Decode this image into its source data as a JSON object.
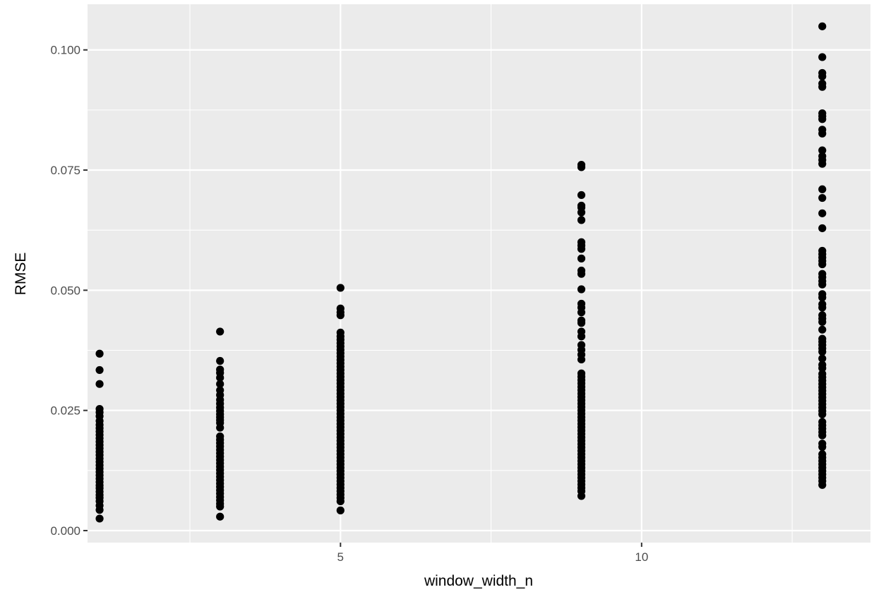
{
  "chart_data": {
    "type": "scatter",
    "title": "",
    "xlabel": "window_width_n",
    "ylabel": "RMSE",
    "xlim": [
      0.8,
      13.8
    ],
    "ylim": [
      -0.0025,
      0.1095
    ],
    "x_ticks": [
      5,
      10
    ],
    "x_tick_labels": [
      "5",
      "10"
    ],
    "x_minor_ticks": [
      2.5,
      7.5,
      12.5
    ],
    "y_ticks": [
      0,
      0.025,
      0.05,
      0.075,
      0.1
    ],
    "y_tick_labels": [
      "0.000",
      "0.025",
      "0.050",
      "0.075",
      "0.100"
    ],
    "y_minor_ticks": [
      0.0125,
      0.0375,
      0.0625,
      0.0875
    ],
    "grid": true,
    "colors": {
      "panel_background": "#ebebeb",
      "grid_line": "#ffffff",
      "point": "#000000",
      "tick_label": "#4d4d4d",
      "axis_title": "#000000"
    },
    "series": [
      {
        "x": 1,
        "values": [
          0.0025,
          0.0043,
          0.0052,
          0.0061,
          0.0068,
          0.0074,
          0.0081,
          0.0088,
          0.0094,
          0.0101,
          0.0108,
          0.0115,
          0.0122,
          0.0129,
          0.0136,
          0.0143,
          0.015,
          0.0157,
          0.0164,
          0.0171,
          0.0178,
          0.0185,
          0.0192,
          0.0199,
          0.0206,
          0.0213,
          0.022,
          0.0228,
          0.0238,
          0.0246,
          0.0253,
          0.0305,
          0.0334,
          0.0368
        ]
      },
      {
        "x": 3,
        "values": [
          0.0029,
          0.005,
          0.0056,
          0.0063,
          0.007,
          0.0077,
          0.0084,
          0.0091,
          0.0098,
          0.0105,
          0.0112,
          0.0119,
          0.0126,
          0.0133,
          0.014,
          0.0147,
          0.0154,
          0.0161,
          0.0168,
          0.0175,
          0.0182,
          0.0189,
          0.0196,
          0.0214,
          0.0224,
          0.023,
          0.0236,
          0.0242,
          0.0249,
          0.0256,
          0.0264,
          0.0272,
          0.0282,
          0.0292,
          0.0305,
          0.0318,
          0.0328,
          0.0335,
          0.0353,
          0.0414
        ]
      },
      {
        "x": 5,
        "values": [
          0.0042,
          0.0061,
          0.0068,
          0.0075,
          0.0082,
          0.0089,
          0.0096,
          0.0103,
          0.011,
          0.0117,
          0.0124,
          0.0131,
          0.0138,
          0.0145,
          0.0152,
          0.0159,
          0.0166,
          0.0173,
          0.018,
          0.0187,
          0.0194,
          0.0201,
          0.0208,
          0.0215,
          0.0222,
          0.0229,
          0.0236,
          0.0243,
          0.025,
          0.0257,
          0.0264,
          0.0271,
          0.0278,
          0.0285,
          0.0292,
          0.0299,
          0.0306,
          0.0313,
          0.032,
          0.0327,
          0.0334,
          0.0341,
          0.0348,
          0.0355,
          0.0362,
          0.0369,
          0.0376,
          0.0383,
          0.039,
          0.0397,
          0.0404,
          0.0412,
          0.0448,
          0.0454,
          0.0462,
          0.0505
        ]
      },
      {
        "x": 9,
        "values": [
          0.0072,
          0.0082,
          0.0089,
          0.0096,
          0.0103,
          0.011,
          0.0117,
          0.0124,
          0.0131,
          0.0138,
          0.0145,
          0.0152,
          0.0159,
          0.0166,
          0.0173,
          0.018,
          0.0187,
          0.0194,
          0.0201,
          0.0208,
          0.0215,
          0.0222,
          0.0229,
          0.0236,
          0.0243,
          0.025,
          0.0257,
          0.0264,
          0.0271,
          0.0278,
          0.0285,
          0.0292,
          0.0299,
          0.0306,
          0.0313,
          0.032,
          0.0327,
          0.0356,
          0.0366,
          0.0376,
          0.0386,
          0.0404,
          0.0414,
          0.0432,
          0.0437,
          0.0454,
          0.0464,
          0.0472,
          0.0502,
          0.0534,
          0.0541,
          0.0566,
          0.0586,
          0.0593,
          0.06,
          0.0646,
          0.0662,
          0.0672,
          0.0676,
          0.0698,
          0.0756,
          0.0761
        ]
      },
      {
        "x": 13,
        "values": [
          0.0095,
          0.0103,
          0.011,
          0.0117,
          0.0124,
          0.0131,
          0.0138,
          0.0145,
          0.0152,
          0.0159,
          0.0174,
          0.0181,
          0.0198,
          0.0205,
          0.0212,
          0.0219,
          0.0226,
          0.0242,
          0.0249,
          0.0256,
          0.0263,
          0.027,
          0.0277,
          0.0284,
          0.0291,
          0.0298,
          0.0305,
          0.0312,
          0.0319,
          0.0326,
          0.0338,
          0.0345,
          0.0358,
          0.0372,
          0.0379,
          0.0386,
          0.0393,
          0.0399,
          0.0418,
          0.0434,
          0.0441,
          0.0448,
          0.0464,
          0.0471,
          0.0485,
          0.0492,
          0.0512,
          0.0519,
          0.0527,
          0.0534,
          0.0554,
          0.0561,
          0.0568,
          0.0575,
          0.0582,
          0.0629,
          0.066,
          0.0692,
          0.071,
          0.0763,
          0.0771,
          0.0779,
          0.0791,
          0.0826,
          0.0834,
          0.0856,
          0.0862,
          0.0868,
          0.0923,
          0.093,
          0.0945,
          0.0952,
          0.0985,
          0.1049
        ]
      }
    ]
  }
}
